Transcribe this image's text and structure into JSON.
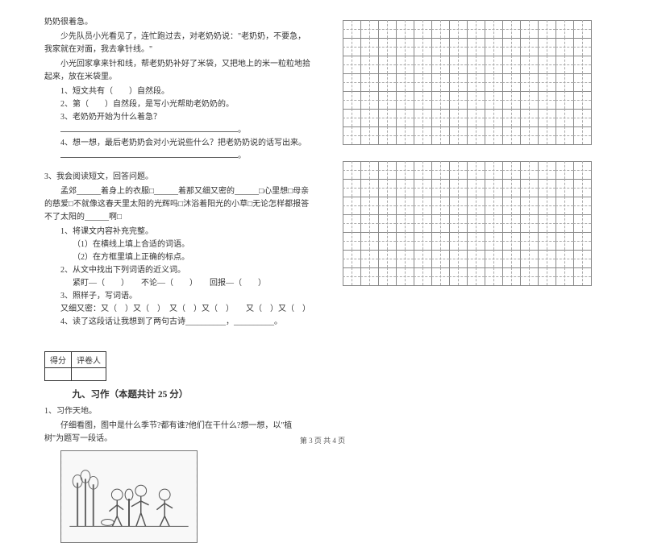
{
  "left": {
    "p1": "奶奶很着急。",
    "p2": "少先队员小光看见了，连忙跑过去，对老奶奶说：\"老奶奶，不要急，我家就在对面，我去拿针线。\"",
    "p3": "小光回家拿来针和线，帮老奶奶补好了米袋，又把地上的米一粒粒地拾起来，放在米袋里。",
    "q1": "1、短文共有（　　）自然段。",
    "q2": "2、第（　　）自然段，是写小光帮助老奶奶的。",
    "q3": "3、老奶奶开始为什么着急？",
    "q4": "4、想一想，最后老奶奶会对小光说些什么？把老奶奶说的话写出来。",
    "s3_title": "3、我会阅读短文，回答问题。",
    "s3_body": "孟郊______着身上的衣服□______着那又细又密的______□心里想□母亲的慈爱□不就像这春天里太阳的光辉吗□沐浴着阳光的小草□无论怎样都报答不了太阳的______啊□",
    "s3_q1": "1、将课文内容补充完整。",
    "s3_q1a": "（1）在横线上填上合适的词语。",
    "s3_q1b": "（2）在方框里填上正确的标点。",
    "s3_q2": "2、从文中找出下列词语的近义词。",
    "s3_q2a": "紧盯—（　　）　　不论—（　　）　　回报—（　　）",
    "s3_q3": "3、照样子，写词语。",
    "s3_q3a": "又细又密：又（　）又（　）　又（　）又（　）　　又（　）又（　）",
    "s3_q4": "4、读了这段话让我想到了两句古诗__________，__________。",
    "score_a": "得分",
    "score_b": "评卷人",
    "sec9": "九、习作（本题共计 25 分）",
    "xz1": "1、习作天地。",
    "xz1a": "仔细看图，图中是什么季节?都有谁?他们在干什么?想一想，以\"植树\"为题写一段话。"
  },
  "grid": {
    "rows1": 7,
    "rows2": 7,
    "cols": 14
  },
  "footer": "第 3 页 共 4 页"
}
